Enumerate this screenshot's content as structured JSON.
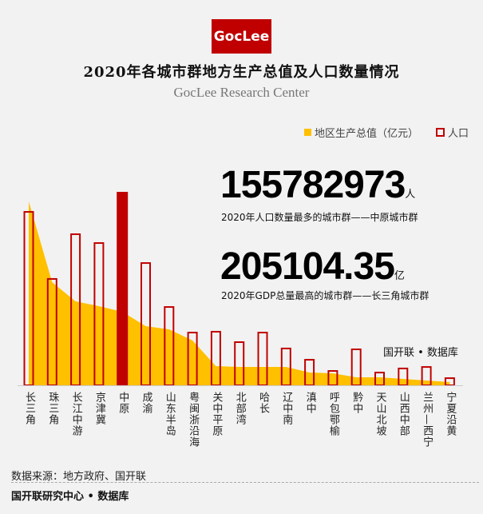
{
  "logo": "GocLee",
  "title": "2020年各城市群地方生产总值及人口数量情况",
  "subtitle": "GocLee Research Center",
  "legend": {
    "gdp": "地区生产总值（亿元）",
    "pop": "人口"
  },
  "highlight": {
    "pop_value": "155782973",
    "pop_unit": "人",
    "pop_caption": "2020年人口数量最多的城市群——中原城市群",
    "gdp_value": "205104.35",
    "gdp_unit": "亿",
    "gdp_caption": "2020年GDP总量最高的城市群——长三角城市群"
  },
  "watermark": "国开联 • 数据库",
  "source": "数据来源：地方政府、国开联",
  "org": "国开联研究中心 • 数据库",
  "colors": {
    "gdp": "#ffc000",
    "pop": "#c00000",
    "highlight": "#c00000"
  },
  "chart_data": {
    "type": "bar+area",
    "title": "2020年各城市群地方生产总值及人口数量情况",
    "categories": [
      "长三角",
      "珠三角",
      "长江中游",
      "京津冀",
      "中原",
      "成渝",
      "山东半岛",
      "粤闽浙沿海",
      "关中平原",
      "北部湾",
      "哈长",
      "辽中南",
      "滇中",
      "呼包鄂榆",
      "黔中",
      "天山北坡",
      "山西中部",
      "兰州—西宁",
      "宁夏沿黄"
    ],
    "series": [
      {
        "name": "地区生产总值（亿元）",
        "type": "area",
        "values": [
          205104,
          115000,
          93600,
          88300,
          82000,
          66000,
          62400,
          50000,
          21400,
          20500,
          20500,
          20500,
          14300,
          13400,
          8900,
          8900,
          7100,
          5400,
          3600
        ]
      },
      {
        "name": "人口",
        "type": "bar",
        "highlight_index": 4,
        "values": [
          140300000,
          86300000,
          122300000,
          115200000,
          155782973,
          99100000,
          63700000,
          43100000,
          43800000,
          35400000,
          43100000,
          30300000,
          21200000,
          12200000,
          29600000,
          10900000,
          14200000,
          15400000,
          6400000
        ]
      }
    ],
    "ylim_pop": [
      0,
      155782973
    ],
    "ylim_gdp": [
      0,
      205104.35
    ],
    "grid": false,
    "legend": "top-right"
  }
}
